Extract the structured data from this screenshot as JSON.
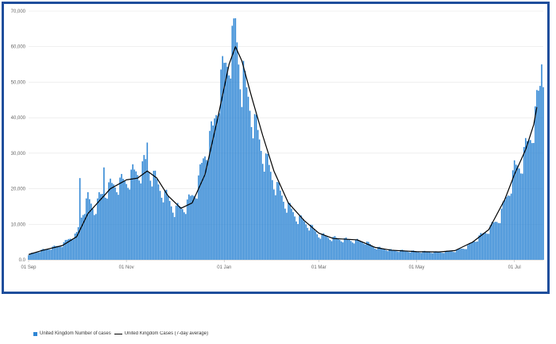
{
  "chart_data": {
    "type": "bar",
    "x_ticks": [
      "01 Sep",
      "01 Nov",
      "01 Jan",
      "01 Mar",
      "01 May",
      "01 Jul"
    ],
    "y_ticks": [
      "0.0",
      "10,000",
      "20,000",
      "30,000",
      "40,000",
      "50,000",
      "60,000",
      "70,000"
    ],
    "ylim": [
      0,
      70000
    ],
    "x_range": [
      "2020-09-01",
      "2021-07-19"
    ],
    "grid": "horizontal",
    "legend_position": "bottom-left",
    "colors": {
      "bars": "#2f86d4",
      "line": "#000000",
      "frame": "#1f4e9c",
      "grid": "#e6e6e6"
    },
    "series": [
      {
        "name": "United Kingdom Number of cases",
        "render": "bar",
        "x_start": "2020-09-01",
        "x_end": "2021-07-19",
        "anchors": [
          [
            "2020-09-01",
            1500
          ],
          [
            "2020-09-08",
            2500
          ],
          [
            "2020-09-15",
            3300
          ],
          [
            "2020-09-22",
            4200
          ],
          [
            "2020-09-28",
            6500
          ],
          [
            "2020-10-01",
            7000
          ],
          [
            "2020-10-05",
            14000
          ],
          [
            "2020-10-08",
            17000
          ],
          [
            "2020-10-12",
            14000
          ],
          [
            "2020-10-15",
            17000
          ],
          [
            "2020-10-20",
            20000
          ],
          [
            "2020-10-25",
            21000
          ],
          [
            "2020-11-01",
            22000
          ],
          [
            "2020-11-05",
            24000
          ],
          [
            "2020-11-10",
            25000
          ],
          [
            "2020-11-13",
            27000
          ],
          [
            "2020-11-17",
            24000
          ],
          [
            "2020-11-22",
            20000
          ],
          [
            "2020-11-27",
            17000
          ],
          [
            "2020-12-01",
            14000
          ],
          [
            "2020-12-08",
            15000
          ],
          [
            "2020-12-15",
            20000
          ],
          [
            "2020-12-20",
            30000
          ],
          [
            "2020-12-25",
            36000
          ],
          [
            "2020-12-29",
            48000
          ],
          [
            "2021-01-03",
            56000
          ],
          [
            "2021-01-06",
            61000
          ],
          [
            "2021-01-09",
            60000
          ],
          [
            "2021-01-12",
            50000
          ],
          [
            "2021-01-16",
            45000
          ],
          [
            "2021-01-20",
            38000
          ],
          [
            "2021-01-25",
            30000
          ],
          [
            "2021-02-01",
            22000
          ],
          [
            "2021-02-08",
            16000
          ],
          [
            "2021-02-15",
            12000
          ],
          [
            "2021-02-22",
            10000
          ],
          [
            "2021-03-01",
            7000
          ],
          [
            "2021-03-10",
            6000
          ],
          [
            "2021-03-20",
            5500
          ],
          [
            "2021-03-30",
            5000
          ],
          [
            "2021-04-05",
            3500
          ],
          [
            "2021-04-15",
            2700
          ],
          [
            "2021-05-01",
            2300
          ],
          [
            "2021-05-15",
            2100
          ],
          [
            "2021-05-25",
            2500
          ],
          [
            "2021-06-01",
            3500
          ],
          [
            "2021-06-08",
            6000
          ],
          [
            "2021-06-15",
            8500
          ],
          [
            "2021-06-22",
            12000
          ],
          [
            "2021-06-28",
            20000
          ],
          [
            "2021-07-01",
            25000
          ],
          [
            "2021-07-05",
            27000
          ],
          [
            "2021-07-10",
            33000
          ],
          [
            "2021-07-14",
            40000
          ],
          [
            "2021-07-17",
            48000
          ],
          [
            "2021-07-19",
            54000
          ]
        ],
        "spikes": [
          [
            "2020-10-03",
            23000
          ],
          [
            "2020-10-18",
            26000
          ],
          [
            "2020-11-14",
            33000
          ],
          [
            "2021-01-08",
            68000
          ],
          [
            "2021-01-13",
            56000
          ],
          [
            "2021-07-18",
            55000
          ]
        ]
      },
      {
        "name": "United Kingdom Cases (7-day average)",
        "render": "line",
        "points": [
          [
            "2020-09-01",
            1500
          ],
          [
            "2020-09-10",
            2700
          ],
          [
            "2020-09-22",
            4000
          ],
          [
            "2020-10-01",
            6500
          ],
          [
            "2020-10-08",
            13000
          ],
          [
            "2020-10-14",
            16000
          ],
          [
            "2020-10-22",
            20000
          ],
          [
            "2020-11-01",
            22500
          ],
          [
            "2020-11-08",
            23000
          ],
          [
            "2020-11-14",
            25000
          ],
          [
            "2020-11-20",
            23000
          ],
          [
            "2020-11-27",
            18000
          ],
          [
            "2020-12-05",
            14500
          ],
          [
            "2020-12-12",
            16000
          ],
          [
            "2020-12-20",
            24000
          ],
          [
            "2020-12-28",
            40000
          ],
          [
            "2021-01-04",
            55000
          ],
          [
            "2021-01-08",
            60000
          ],
          [
            "2021-01-12",
            56000
          ],
          [
            "2021-01-18",
            46000
          ],
          [
            "2021-01-25",
            35000
          ],
          [
            "2021-02-01",
            25000
          ],
          [
            "2021-02-10",
            16000
          ],
          [
            "2021-02-20",
            11000
          ],
          [
            "2021-03-01",
            7500
          ],
          [
            "2021-03-10",
            6000
          ],
          [
            "2021-03-25",
            5600
          ],
          [
            "2021-04-05",
            3500
          ],
          [
            "2021-04-15",
            2700
          ],
          [
            "2021-05-01",
            2300
          ],
          [
            "2021-05-15",
            2200
          ],
          [
            "2021-05-25",
            2600
          ],
          [
            "2021-06-05",
            5000
          ],
          [
            "2021-06-15",
            8500
          ],
          [
            "2021-06-25",
            17000
          ],
          [
            "2021-07-01",
            24000
          ],
          [
            "2021-07-08",
            31000
          ],
          [
            "2021-07-13",
            38000
          ],
          [
            "2021-07-15",
            43000
          ]
        ]
      }
    ]
  },
  "legend": {
    "items": [
      {
        "label": "United Kingdom Number of cases",
        "color": "#2f86d4",
        "kind": "bar"
      },
      {
        "label": "United Kingdom Cases (7-day average)",
        "color": "#000000",
        "kind": "line"
      }
    ]
  }
}
